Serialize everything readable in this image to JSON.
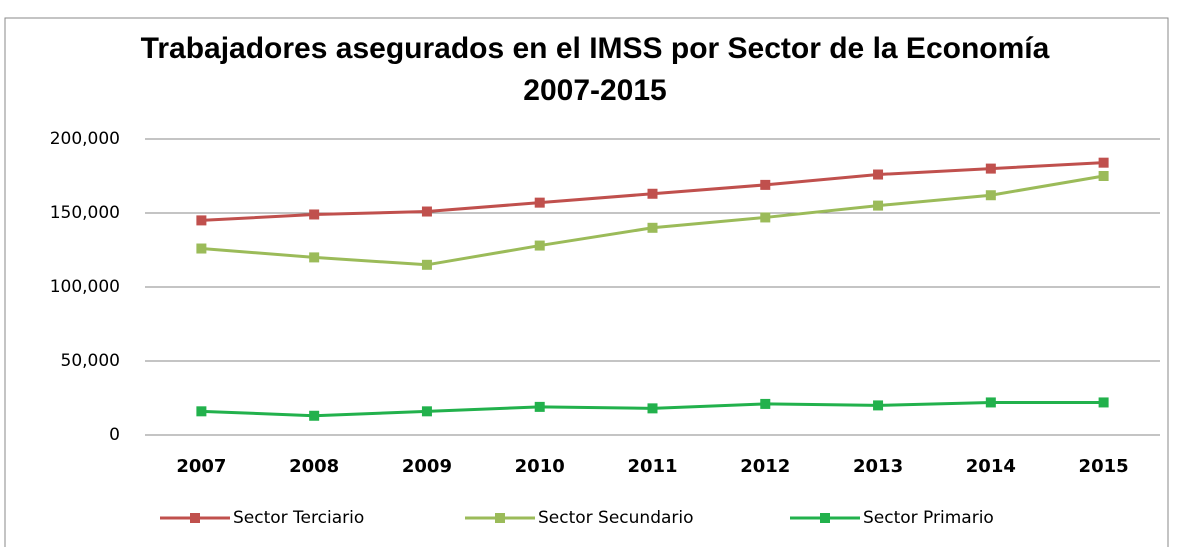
{
  "chart_data": {
    "type": "line",
    "title": "Trabajadores asegurados en el IMSS por Sector de la Economía 2007-2015",
    "categories": [
      "2007",
      "2008",
      "2009",
      "2010",
      "2011",
      "2012",
      "2013",
      "2014",
      "2015"
    ],
    "series": [
      {
        "name": "Sector Terciario",
        "color": "#c0504d",
        "values": [
          145000,
          149000,
          151000,
          157000,
          163000,
          169000,
          176000,
          180000,
          184000
        ]
      },
      {
        "name": "Sector Secundario",
        "color": "#9bbb59",
        "values": [
          126000,
          120000,
          115000,
          128000,
          140000,
          147000,
          155000,
          162000,
          175000
        ]
      },
      {
        "name": "Sector Primario",
        "color": "#22b14c",
        "values": [
          16000,
          13000,
          16000,
          19000,
          18000,
          21000,
          20000,
          22000,
          22000
        ]
      }
    ],
    "ylim": [
      0,
      200000
    ],
    "yticks": [
      0,
      {
        "value": 50000,
        "label": "50,000"
      },
      {
        "value": 100000,
        "label": "100,000"
      },
      {
        "value": 150000,
        "label": "150,000"
      },
      {
        "value": 200000,
        "label": "200,000"
      }
    ],
    "grid": true,
    "legend": "bottom"
  }
}
